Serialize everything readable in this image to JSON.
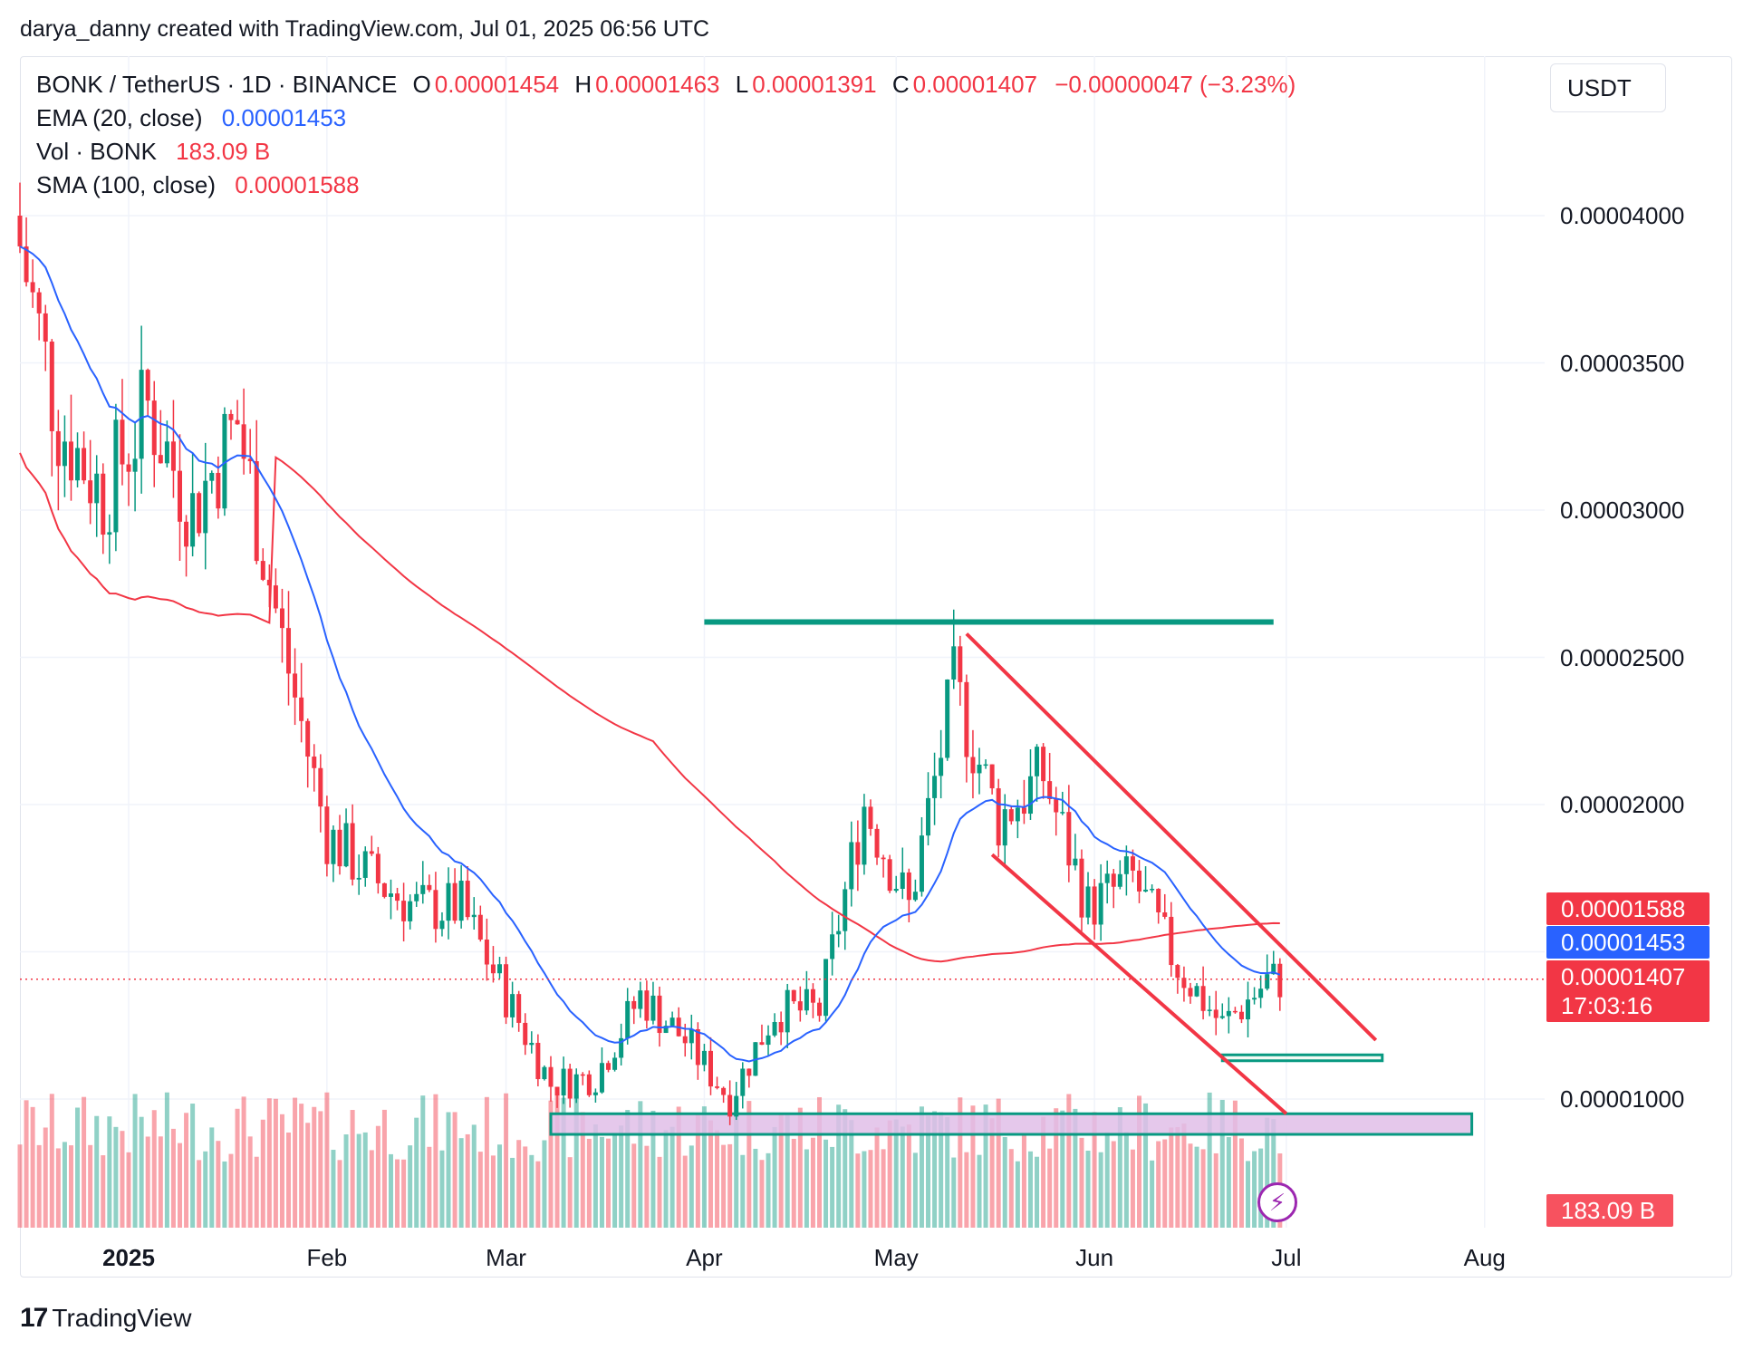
{
  "header": {
    "creator_line": "darya_danny created with TradingView.com, Jul 01, 2025 06:56 UTC"
  },
  "legend": {
    "symbol": "BONK / TetherUS · 1D · BINANCE",
    "o_label": "O",
    "o_value": "0.00001454",
    "h_label": "H",
    "h_value": "0.00001463",
    "l_label": "L",
    "l_value": "0.00001391",
    "c_label": "C",
    "c_value": "0.00001407",
    "change": "−0.00000047 (−3.23%)",
    "ema_label": "EMA (20, close)",
    "ema_value": "0.00001453",
    "vol_label": "Vol · BONK",
    "vol_value": "183.09 B",
    "sma_label": "SMA (100, close)",
    "sma_value": "0.00001588"
  },
  "currency_button": "USDT",
  "price_tags": {
    "sma": "0.00001588",
    "ema": "0.00001453",
    "last": "0.00001407",
    "countdown": "17:03:16",
    "volume": "183.09 B"
  },
  "brand": "TradingView",
  "colors": {
    "up": "#089981",
    "down": "#f23645",
    "ema": "#2962ff",
    "sma": "#f23645",
    "zone_fill": "#e1bee7"
  },
  "chart_data": {
    "type": "candlestick",
    "y_ticks": [
      "0.00004000",
      "0.00003500",
      "0.00003000",
      "0.00002500",
      "0.00002000",
      "0.00001000"
    ],
    "x_ticks": [
      "2025",
      "Feb",
      "Mar",
      "Apr",
      "May",
      "Jun",
      "Jul",
      "Aug"
    ],
    "ylim": [
      6.5e-06,
      4.55e-05
    ],
    "x_range": [
      "2024-12-15",
      "2025-08-10"
    ],
    "grid": true,
    "series": [
      {
        "name": "EMA (20, close)",
        "last": 1.453e-05
      },
      {
        "name": "SMA (100, close)",
        "last": 1.588e-05
      },
      {
        "name": "Vol · BONK",
        "last": "183.09 B"
      }
    ],
    "close_points": [
      {
        "date": "2024-12-15",
        "close": 4e-05
      },
      {
        "date": "2024-12-22",
        "close": 3.3e-05
      },
      {
        "date": "2024-12-29",
        "close": 3.05e-05
      },
      {
        "date": "2025-01-05",
        "close": 3.35e-05
      },
      {
        "date": "2025-01-12",
        "close": 3e-05
      },
      {
        "date": "2025-01-19",
        "close": 3.3e-05
      },
      {
        "date": "2025-01-26",
        "close": 2.55e-05
      },
      {
        "date": "2025-02-02",
        "close": 1.9e-05
      },
      {
        "date": "2025-02-09",
        "close": 1.75e-05
      },
      {
        "date": "2025-02-16",
        "close": 1.65e-05
      },
      {
        "date": "2025-02-23",
        "close": 1.65e-05
      },
      {
        "date": "2025-03-02",
        "close": 1.35e-05
      },
      {
        "date": "2025-03-09",
        "close": 1.05e-05
      },
      {
        "date": "2025-03-16",
        "close": 1.08e-05
      },
      {
        "date": "2025-03-23",
        "close": 1.35e-05
      },
      {
        "date": "2025-03-30",
        "close": 1.2e-05
      },
      {
        "date": "2025-04-06",
        "close": 1e-05
      },
      {
        "date": "2025-04-13",
        "close": 1.3e-05
      },
      {
        "date": "2025-04-20",
        "close": 1.3e-05
      },
      {
        "date": "2025-04-27",
        "close": 2e-05
      },
      {
        "date": "2025-05-04",
        "close": 1.65e-05
      },
      {
        "date": "2025-05-11",
        "close": 2.4e-05
      },
      {
        "date": "2025-05-18",
        "close": 1.95e-05
      },
      {
        "date": "2025-05-25",
        "close": 2.1e-05
      },
      {
        "date": "2025-06-01",
        "close": 1.65e-05
      },
      {
        "date": "2025-06-08",
        "close": 1.75e-05
      },
      {
        "date": "2025-06-15",
        "close": 1.45e-05
      },
      {
        "date": "2025-06-22",
        "close": 1.25e-05
      },
      {
        "date": "2025-06-29",
        "close": 1.4e-05
      },
      {
        "date": "2025-07-01",
        "close": 1.407e-05
      }
    ],
    "annotations": [
      {
        "type": "horizontal_line",
        "price": 2.62e-05,
        "from": "2025-04-01",
        "to": "2025-06-29",
        "color": "#089981"
      },
      {
        "type": "trendline",
        "from": [
          "2025-05-12",
          2.58e-05
        ],
        "to": [
          "2025-07-15",
          1.2e-05
        ],
        "color": "#f23645"
      },
      {
        "type": "trendline",
        "from": [
          "2025-05-16",
          1.83e-05
        ],
        "to": [
          "2025-07-01",
          9.5e-06
        ],
        "color": "#f23645"
      },
      {
        "type": "zone",
        "from": "2025-03-08",
        "to": "2025-07-30",
        "low": 8.8e-06,
        "high": 9.5e-06,
        "color": "#089981"
      },
      {
        "type": "zone",
        "from": "2025-06-21",
        "to": "2025-07-16",
        "low": 1.13e-05,
        "high": 1.15e-05,
        "color": "#089981"
      }
    ]
  }
}
